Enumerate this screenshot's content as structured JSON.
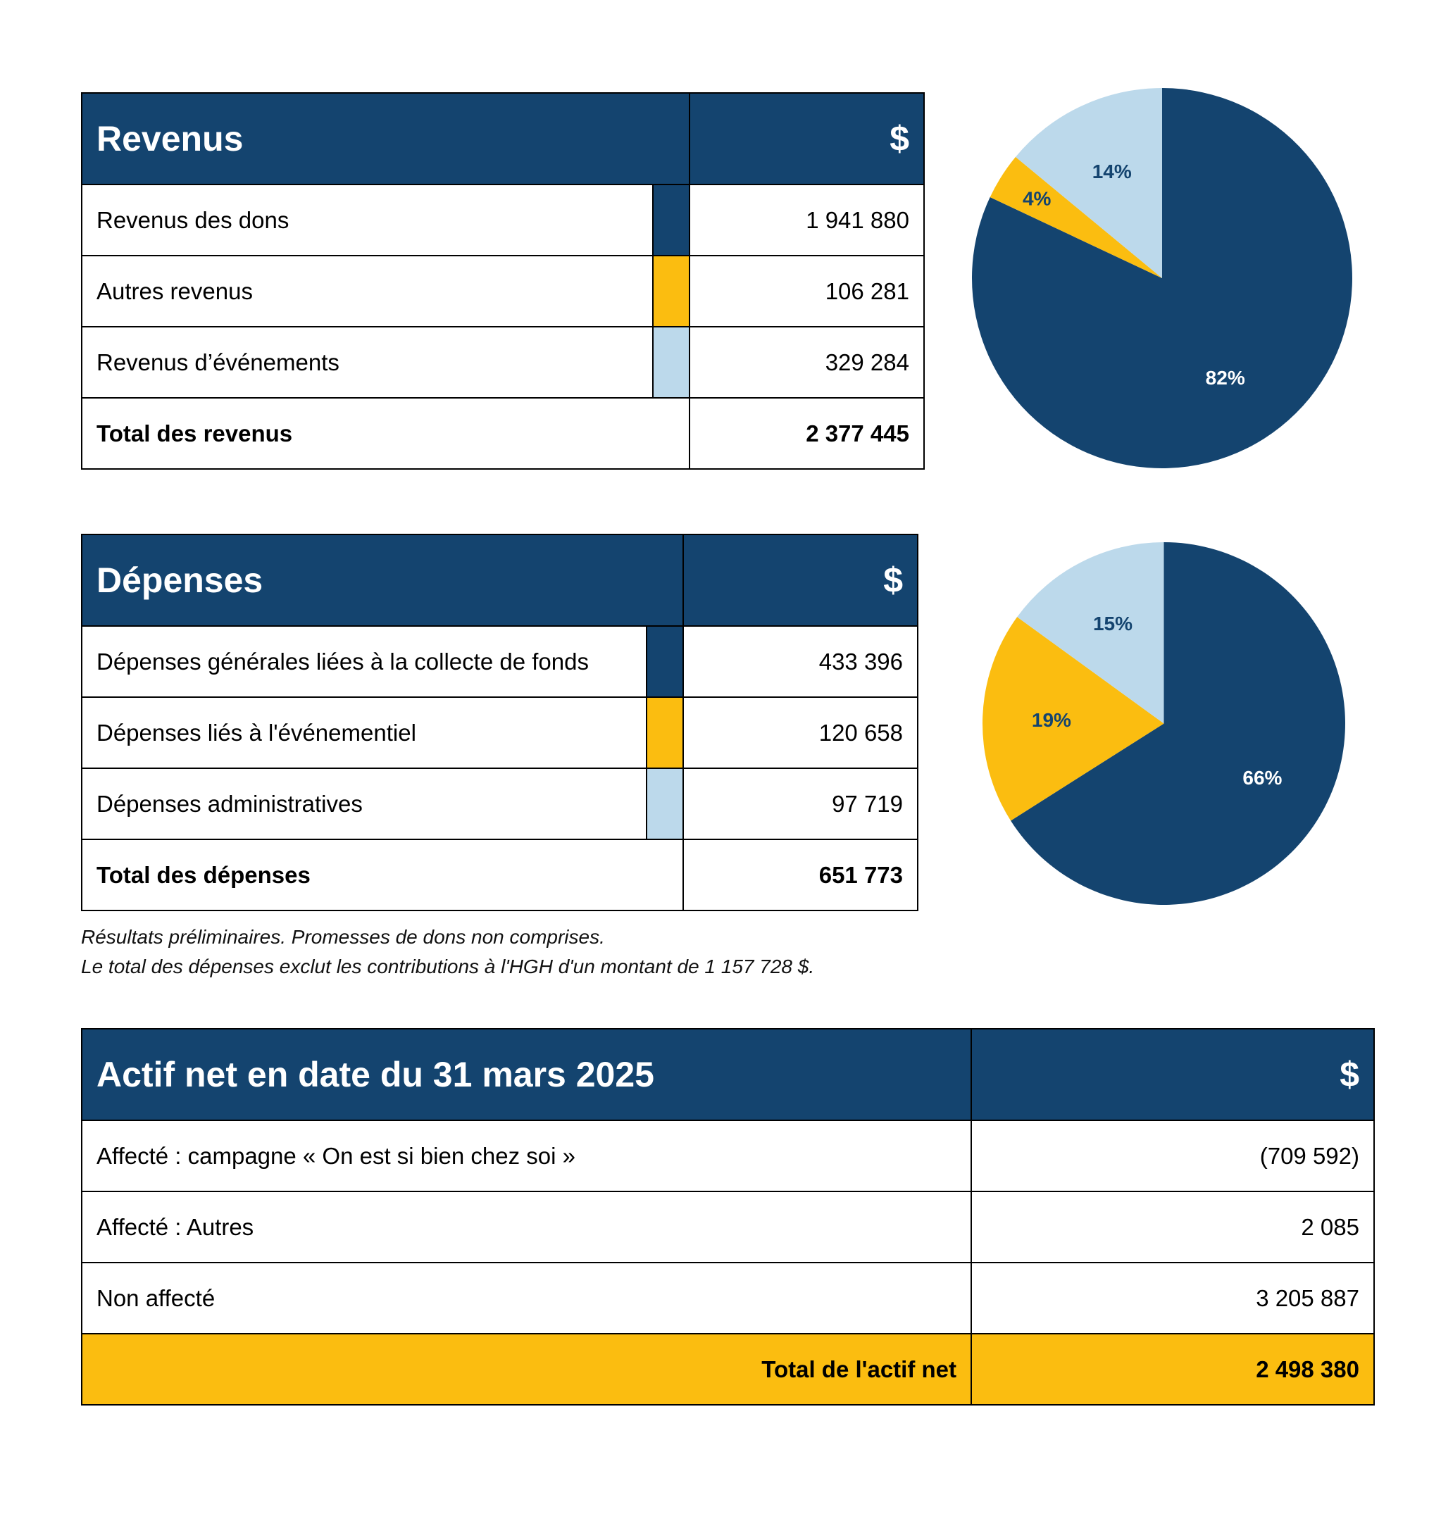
{
  "colors": {
    "navy": "#14446f",
    "gold": "#fbbd10",
    "light_blue": "#bcd9eb",
    "white": "#ffffff"
  },
  "revenus": {
    "title": "Revenus",
    "currency": "$",
    "rows": [
      {
        "label": "Revenus des dons",
        "value": "1 941 880",
        "color": "#14446f"
      },
      {
        "label": "Autres revenus",
        "value": "106 281",
        "color": "#fbbd10"
      },
      {
        "label": "Revenus d’événements",
        "value": "329 284",
        "color": "#bcd9eb"
      }
    ],
    "total_label": "Total des revenus",
    "total_value": "2 377 445"
  },
  "depenses": {
    "title": "Dépenses",
    "currency": "$",
    "rows": [
      {
        "label": "Dépenses générales liées à la collecte de fonds",
        "value": "433 396",
        "color": "#14446f"
      },
      {
        "label": "Dépenses liés à l'événementiel",
        "value": "120 658",
        "color": "#fbbd10"
      },
      {
        "label": "Dépenses administratives",
        "value": "97 719",
        "color": "#bcd9eb"
      }
    ],
    "total_label": "Total des dépenses",
    "total_value": "651 773"
  },
  "notes": {
    "line1": "Résultats préliminaires. Promesses de dons non comprises.",
    "line2": "Le total des dépenses exclut les contributions à l'HGH d'un montant de 1 157 728 $."
  },
  "actif": {
    "title": "Actif net en date du 31 mars 2025",
    "currency": "$",
    "rows": [
      {
        "label": "Affecté : campagne « On est si bien chez soi »",
        "value": "(709 592)"
      },
      {
        "label": "Affecté : Autres",
        "value": "2 085"
      },
      {
        "label": "Non affecté",
        "value": "3 205 887"
      }
    ],
    "total_label": "Total de l'actif net",
    "total_value": "2 498 380"
  },
  "chart_data": [
    {
      "type": "pie",
      "categories": [
        "Revenus des dons",
        "Autres revenus",
        "Revenus d’événements"
      ],
      "values": [
        82,
        4,
        14
      ],
      "data_labels": [
        "82%",
        "4%",
        "14%"
      ],
      "colors": [
        "#14446f",
        "#fbbd10",
        "#bcd9eb"
      ],
      "label_colors": [
        "#ffffff",
        "#14446f",
        "#14446f"
      ]
    },
    {
      "type": "pie",
      "categories": [
        "Dépenses générales liées à la collecte de fonds",
        "Dépenses liés à l'événementiel",
        "Dépenses administratives"
      ],
      "values": [
        66,
        19,
        15
      ],
      "data_labels": [
        "66%",
        "19%",
        "15%"
      ],
      "colors": [
        "#14446f",
        "#fbbd10",
        "#bcd9eb"
      ],
      "label_colors": [
        "#ffffff",
        "#14446f",
        "#14446f"
      ]
    }
  ]
}
